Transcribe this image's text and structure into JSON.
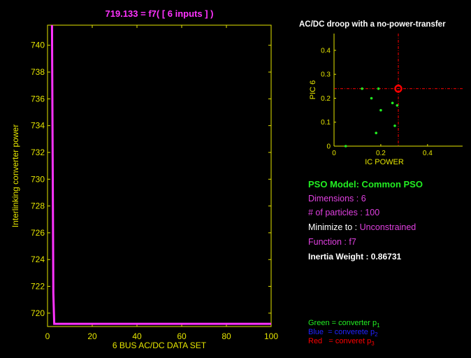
{
  "colors": {
    "axis": "#e6e600",
    "line": "#ff33ff",
    "magenta": "#e040e0",
    "green": "#22ee22",
    "blue": "#2222ff",
    "red": "#ff0000",
    "white": "#ffffff",
    "background": "#000000"
  },
  "chart_data": [
    {
      "type": "line",
      "title": "719.133 = f7( [ 6 inputs ] )",
      "xlabel": "6 BUS AC/DC DATA SET",
      "ylabel": "Interlinking converter power",
      "xlim": [
        0,
        100
      ],
      "ylim": [
        719,
        741.5
      ],
      "x_ticks": [
        0,
        20,
        40,
        60,
        80,
        100
      ],
      "y_ticks": [
        720,
        722,
        724,
        726,
        728,
        730,
        732,
        734,
        736,
        738,
        740
      ],
      "grid": false,
      "series": [
        {
          "x": [
            2,
            2.6,
            3,
            100
          ],
          "y": [
            741.5,
            721.5,
            719.2,
            719.2
          ]
        }
      ]
    },
    {
      "type": "scatter",
      "title": "AC/DC droop with a no-power-transfer",
      "xlabel": "IC POWER",
      "ylabel": "PIC 6",
      "xlim": [
        0,
        0.55
      ],
      "ylim": [
        0,
        0.47
      ],
      "x_ticks": [
        0,
        0.2,
        0.4
      ],
      "x_tick_labels": [
        "0",
        "0.2",
        "0.4"
      ],
      "y_ticks": [
        0,
        0.1,
        0.2,
        0.3,
        0.4
      ],
      "grid": false,
      "series": [
        {
          "color": "green",
          "points": [
            [
              0.05,
              0.0
            ],
            [
              0.12,
              0.24
            ],
            [
              0.16,
              0.2
            ],
            [
              0.18,
              0.055
            ],
            [
              0.19,
              0.24
            ],
            [
              0.2,
              0.15
            ],
            [
              0.25,
              0.18
            ],
            [
              0.26,
              0.085
            ],
            [
              0.27,
              0.17
            ]
          ]
        }
      ],
      "best_point": [
        0.275,
        0.24
      ],
      "crosshair": {
        "x": 0.275,
        "y": 0.24
      }
    }
  ],
  "info": {
    "model": "PSO Model: Common PSO",
    "dimensions": "Dimensions : 6",
    "particles": "# of particles : 100",
    "minimize_label": "Minimize to : ",
    "minimize_value": "Unconstrained",
    "function": "Function : f7",
    "inertia": "Inertia Weight : 0.86731"
  },
  "legend": {
    "green_text": "Green = converter p",
    "green_sub": "1",
    "blue_text": "Blue  = converete p",
    "blue_sub": "2",
    "red_text": "Red   = converet p",
    "red_sub": "3"
  }
}
